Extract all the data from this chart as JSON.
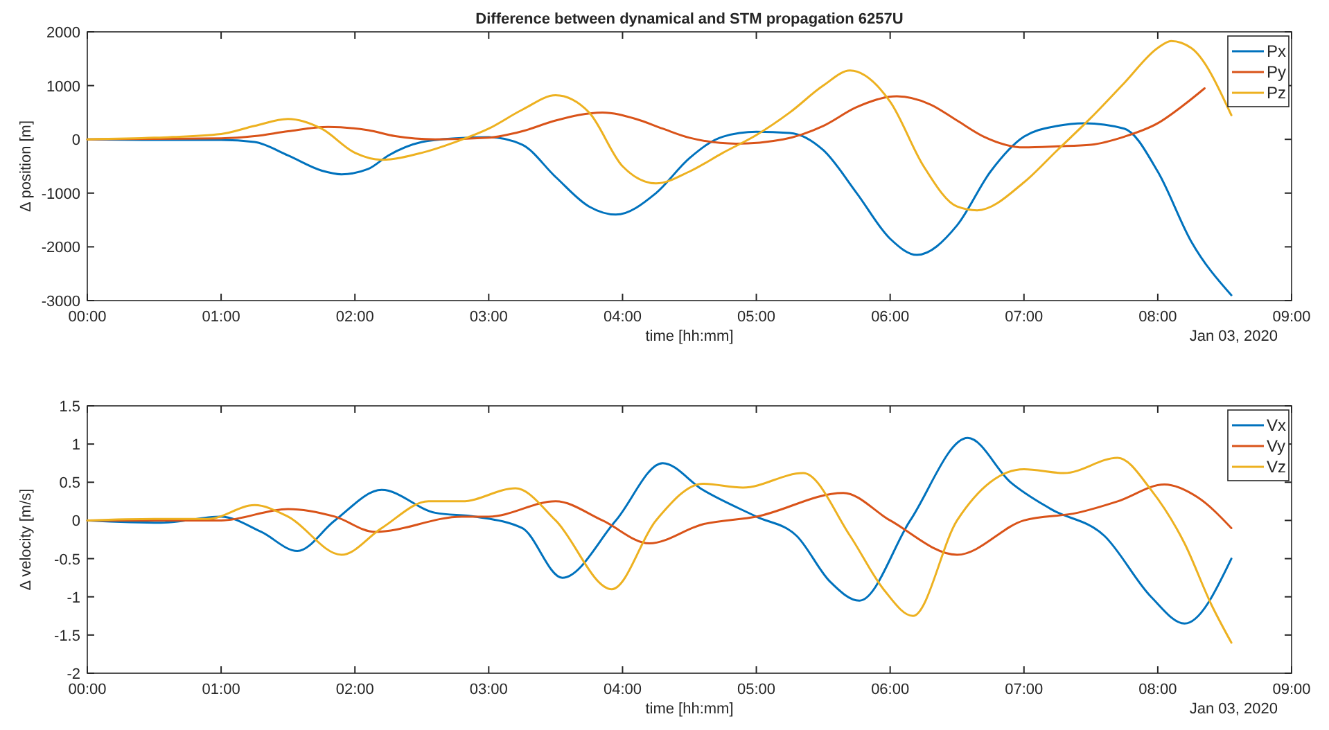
{
  "chart_data": [
    {
      "type": "line",
      "title": "Difference between dynamical and STM propagation 6257U",
      "xlabel": "time [hh:mm]",
      "ylabel": "Δ position [m]",
      "annotations": [
        "Jan 03, 2020"
      ],
      "xlim": [
        0,
        9
      ],
      "xticks": [
        {
          "value": 0,
          "label": "00:00"
        },
        {
          "value": 1,
          "label": "01:00"
        },
        {
          "value": 2,
          "label": "02:00"
        },
        {
          "value": 3,
          "label": "03:00"
        },
        {
          "value": 4,
          "label": "04:00"
        },
        {
          "value": 5,
          "label": "05:00"
        },
        {
          "value": 6,
          "label": "06:00"
        },
        {
          "value": 7,
          "label": "07:00"
        },
        {
          "value": 8,
          "label": "08:00"
        },
        {
          "value": 9,
          "label": "09:00"
        }
      ],
      "ylim": [
        -3000,
        2000
      ],
      "yticks": [
        -3000,
        -2000,
        -1000,
        0,
        1000,
        2000
      ],
      "legend": "top right",
      "series": [
        {
          "name": "Px",
          "color": "#0072bd",
          "x": [
            0,
            0.5,
            1,
            1.25,
            1.5,
            1.75,
            1.9,
            2.1,
            2.25,
            2.5,
            2.75,
            3,
            3.25,
            3.5,
            3.75,
            3.95,
            4.25,
            4.5,
            4.75,
            5,
            5.25,
            5.5,
            5.75,
            6,
            6.2,
            6.5,
            6.75,
            7,
            7.25,
            7.45,
            7.75,
            8,
            8.25,
            8.55
          ],
          "values": [
            0,
            -10,
            -10,
            -50,
            -300,
            -580,
            -650,
            -550,
            -300,
            -50,
            20,
            40,
            -100,
            -700,
            -1250,
            -1400,
            -1000,
            -350,
            50,
            140,
            120,
            -200,
            -1000,
            -1850,
            -2150,
            -1600,
            -600,
            50,
            250,
            300,
            200,
            -600,
            -1900,
            -2900
          ]
        },
        {
          "name": "Py",
          "color": "#d95319",
          "x": [
            0,
            0.5,
            1,
            1.25,
            1.5,
            1.8,
            2.1,
            2.3,
            2.6,
            3,
            3.25,
            3.5,
            3.85,
            4.1,
            4.3,
            4.5,
            4.85,
            5.2,
            5.5,
            5.75,
            6.05,
            6.3,
            6.5,
            6.7,
            7,
            7.25,
            7.5,
            7.75,
            8,
            8.2,
            8.35
          ],
          "values": [
            0,
            10,
            20,
            60,
            150,
            230,
            170,
            60,
            0,
            30,
            150,
            350,
            500,
            380,
            200,
            30,
            -80,
            0,
            250,
            600,
            800,
            650,
            350,
            50,
            -150,
            -130,
            -100,
            50,
            300,
            650,
            950
          ]
        },
        {
          "name": "Pz",
          "color": "#edb120",
          "x": [
            0,
            0.5,
            1,
            1.25,
            1.5,
            1.75,
            2,
            2.2,
            2.5,
            2.75,
            3,
            3.25,
            3.5,
            3.75,
            4,
            4.25,
            4.5,
            4.75,
            5,
            5.25,
            5.5,
            5.7,
            6,
            6.25,
            6.5,
            6.65,
            7,
            7.25,
            7.5,
            7.75,
            8,
            8.1,
            8.25,
            8.55
          ],
          "values": [
            0,
            30,
            100,
            250,
            380,
            200,
            -250,
            -380,
            -250,
            -50,
            200,
            550,
            820,
            500,
            -500,
            -820,
            -600,
            -250,
            80,
            500,
            1000,
            1280,
            700,
            -500,
            -1250,
            -1320,
            -800,
            -200,
            400,
            1050,
            1700,
            1830,
            1700,
            450
          ]
        }
      ]
    },
    {
      "type": "line",
      "xlabel": "time [hh:mm]",
      "ylabel": "Δ velocity [m/s]",
      "annotations": [
        "Jan 03, 2020"
      ],
      "xlim": [
        0,
        9
      ],
      "xticks": [
        {
          "value": 0,
          "label": "00:00"
        },
        {
          "value": 1,
          "label": "01:00"
        },
        {
          "value": 2,
          "label": "02:00"
        },
        {
          "value": 3,
          "label": "03:00"
        },
        {
          "value": 4,
          "label": "04:00"
        },
        {
          "value": 5,
          "label": "05:00"
        },
        {
          "value": 6,
          "label": "06:00"
        },
        {
          "value": 7,
          "label": "07:00"
        },
        {
          "value": 8,
          "label": "08:00"
        },
        {
          "value": 9,
          "label": "09:00"
        }
      ],
      "ylim": [
        -2,
        1.5
      ],
      "yticks": [
        -2,
        -1.5,
        -1,
        -0.5,
        0,
        0.5,
        1,
        1.5
      ],
      "legend": "top right",
      "series": [
        {
          "name": "Vx",
          "color": "#0072bd",
          "x": [
            0,
            0.55,
            1,
            1.3,
            1.57,
            1.85,
            2.2,
            2.6,
            2.9,
            3.25,
            3.55,
            3.95,
            4.3,
            4.6,
            5,
            5.3,
            5.55,
            5.77,
            6.15,
            6.58,
            6.9,
            7.2,
            7.6,
            7.95,
            8.2,
            8.55
          ],
          "values": [
            0,
            -0.03,
            0.05,
            -0.15,
            -0.4,
            0,
            0.4,
            0.1,
            0.05,
            -0.1,
            -0.75,
            0,
            0.75,
            0.4,
            0.05,
            -0.2,
            -0.8,
            -1.05,
            0,
            1.08,
            0.5,
            0.15,
            -0.2,
            -1,
            -1.35,
            -0.5
          ]
        },
        {
          "name": "Vy",
          "color": "#d95319",
          "x": [
            0,
            1,
            1.5,
            1.85,
            2.15,
            2.8,
            3,
            3.5,
            3.85,
            4.2,
            4.6,
            5,
            5.65,
            6,
            6.5,
            7,
            7.4,
            7.7,
            8.05,
            8.3,
            8.55
          ],
          "values": [
            0,
            0,
            0.15,
            0.05,
            -0.15,
            0.05,
            0.05,
            0.25,
            0,
            -0.3,
            -0.05,
            0.05,
            0.36,
            0,
            -0.45,
            0,
            0.1,
            0.25,
            0.47,
            0.3,
            -0.1
          ]
        },
        {
          "name": "Vz",
          "color": "#edb120",
          "x": [
            0,
            0.5,
            0.9,
            1.25,
            1.5,
            1.9,
            2.2,
            2.55,
            2.8,
            3.2,
            3.5,
            3.92,
            4.25,
            4.6,
            4.9,
            5.35,
            5.7,
            5.95,
            6.17,
            6.5,
            7,
            7.3,
            7.7,
            7.95,
            8.2,
            8.4,
            8.55
          ],
          "values": [
            0,
            0.02,
            0.02,
            0.2,
            0.05,
            -0.45,
            -0.1,
            0.25,
            0.25,
            0.42,
            0,
            -0.9,
            0,
            0.48,
            0.43,
            0.62,
            -0.2,
            -0.9,
            -1.25,
            0,
            0.67,
            0.62,
            0.82,
            0.4,
            -0.3,
            -1.1,
            -1.6
          ]
        }
      ]
    }
  ]
}
